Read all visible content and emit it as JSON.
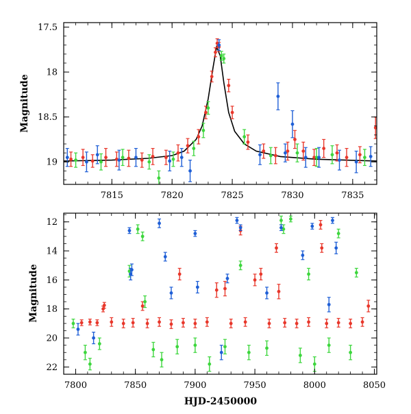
{
  "chart_data": [
    {
      "type": "scatter",
      "panel": "top",
      "title": "",
      "xlabel": "",
      "ylabel": "Magnitude",
      "xlim": [
        7811,
        7837
      ],
      "ylim": [
        19.25,
        17.45
      ],
      "y_inverted": true,
      "x_ticks": [
        7815,
        7820,
        7825,
        7830,
        7835
      ],
      "y_ticks": [
        17.5,
        18,
        18.5,
        19
      ],
      "y_tick_labels": [
        "17.5",
        "18",
        "18.5",
        "19"
      ],
      "series": [
        {
          "color": "#e8372b",
          "points": [
            {
              "x": 7811.6,
              "y": 18.97,
              "e": 0.08
            },
            {
              "x": 7812.6,
              "y": 18.95,
              "e": 0.09
            },
            {
              "x": 7813.4,
              "y": 18.99,
              "e": 0.07
            },
            {
              "x": 7814.5,
              "y": 18.95,
              "e": 0.1
            },
            {
              "x": 7815.4,
              "y": 18.97,
              "e": 0.08
            },
            {
              "x": 7816.4,
              "y": 18.96,
              "e": 0.09
            },
            {
              "x": 7817.5,
              "y": 18.98,
              "e": 0.08
            },
            {
              "x": 7818.4,
              "y": 18.94,
              "e": 0.09
            },
            {
              "x": 7819.5,
              "y": 18.95,
              "e": 0.08
            },
            {
              "x": 7820.5,
              "y": 18.9,
              "e": 0.09
            },
            {
              "x": 7821.3,
              "y": 18.82,
              "e": 0.08
            },
            {
              "x": 7822.2,
              "y": 18.72,
              "e": 0.08
            },
            {
              "x": 7822.8,
              "y": 18.45,
              "e": 0.07
            },
            {
              "x": 7823.3,
              "y": 18.05,
              "e": 0.06
            },
            {
              "x": 7823.6,
              "y": 17.78,
              "e": 0.05
            },
            {
              "x": 7823.75,
              "y": 17.68,
              "e": 0.05
            },
            {
              "x": 7823.9,
              "y": 17.72,
              "e": 0.05
            },
            {
              "x": 7824.7,
              "y": 18.15,
              "e": 0.07
            },
            {
              "x": 7825.0,
              "y": 18.45,
              "e": 0.07
            },
            {
              "x": 7826.3,
              "y": 18.78,
              "e": 0.08
            },
            {
              "x": 7827.6,
              "y": 18.88,
              "e": 0.08
            },
            {
              "x": 7828.6,
              "y": 18.93,
              "e": 0.09
            },
            {
              "x": 7829.6,
              "y": 18.88,
              "e": 0.1
            },
            {
              "x": 7830.2,
              "y": 18.75,
              "e": 0.1
            },
            {
              "x": 7830.9,
              "y": 18.88,
              "e": 0.1
            },
            {
              "x": 7831.8,
              "y": 18.95,
              "e": 0.09
            },
            {
              "x": 7832.6,
              "y": 18.85,
              "e": 0.1
            },
            {
              "x": 7833.7,
              "y": 18.9,
              "e": 0.09
            },
            {
              "x": 7834.5,
              "y": 18.95,
              "e": 0.1
            },
            {
              "x": 7835.6,
              "y": 18.92,
              "e": 0.09
            },
            {
              "x": 7836.9,
              "y": 18.62,
              "e": 0.12
            }
          ]
        },
        {
          "color": "#3dd63d",
          "points": [
            {
              "x": 7812.0,
              "y": 18.98,
              "e": 0.08
            },
            {
              "x": 7814.1,
              "y": 19.0,
              "e": 0.09
            },
            {
              "x": 7815.9,
              "y": 18.95,
              "e": 0.09
            },
            {
              "x": 7818.1,
              "y": 19.0,
              "e": 0.08
            },
            {
              "x": 7818.9,
              "y": 19.18,
              "e": 0.08
            },
            {
              "x": 7820.1,
              "y": 18.97,
              "e": 0.08
            },
            {
              "x": 7821.8,
              "y": 18.85,
              "e": 0.08
            },
            {
              "x": 7822.6,
              "y": 18.65,
              "e": 0.08
            },
            {
              "x": 7823.0,
              "y": 18.4,
              "e": 0.07
            },
            {
              "x": 7824.1,
              "y": 17.82,
              "e": 0.05
            },
            {
              "x": 7824.3,
              "y": 17.85,
              "e": 0.05
            },
            {
              "x": 7826.0,
              "y": 18.72,
              "e": 0.08
            },
            {
              "x": 7828.2,
              "y": 18.93,
              "e": 0.09
            },
            {
              "x": 7830.4,
              "y": 18.9,
              "e": 0.1
            },
            {
              "x": 7832.0,
              "y": 18.95,
              "e": 0.1
            },
            {
              "x": 7833.3,
              "y": 18.92,
              "e": 0.1
            },
            {
              "x": 7836.0,
              "y": 18.95,
              "e": 0.09
            }
          ]
        },
        {
          "color": "#1f5fd6",
          "points": [
            {
              "x": 7811.3,
              "y": 18.95,
              "e": 0.1
            },
            {
              "x": 7812.9,
              "y": 19.0,
              "e": 0.11
            },
            {
              "x": 7813.8,
              "y": 18.92,
              "e": 0.1
            },
            {
              "x": 7815.6,
              "y": 18.98,
              "e": 0.11
            },
            {
              "x": 7817.0,
              "y": 18.95,
              "e": 0.1
            },
            {
              "x": 7819.8,
              "y": 18.99,
              "e": 0.11
            },
            {
              "x": 7820.8,
              "y": 18.95,
              "e": 0.1
            },
            {
              "x": 7821.5,
              "y": 19.1,
              "e": 0.12
            },
            {
              "x": 7823.9,
              "y": 17.7,
              "e": 0.06
            },
            {
              "x": 7827.3,
              "y": 18.92,
              "e": 0.11
            },
            {
              "x": 7828.8,
              "y": 18.27,
              "e": 0.15
            },
            {
              "x": 7829.4,
              "y": 18.9,
              "e": 0.1
            },
            {
              "x": 7830.0,
              "y": 18.58,
              "e": 0.15
            },
            {
              "x": 7831.1,
              "y": 18.95,
              "e": 0.11
            },
            {
              "x": 7832.2,
              "y": 18.95,
              "e": 0.11
            },
            {
              "x": 7833.9,
              "y": 18.98,
              "e": 0.11
            },
            {
              "x": 7835.3,
              "y": 19.0,
              "e": 0.12
            },
            {
              "x": 7836.5,
              "y": 18.94,
              "e": 0.11
            }
          ]
        }
      ],
      "model_curve": {
        "color": "#000000",
        "x": [
          7811,
          7815,
          7818,
          7820,
          7821,
          7822,
          7822.5,
          7823,
          7823.4,
          7823.7,
          7824,
          7824.3,
          7824.7,
          7825.2,
          7826,
          7827,
          7829,
          7832,
          7837
        ],
        "y": [
          18.99,
          18.98,
          18.96,
          18.93,
          18.88,
          18.75,
          18.6,
          18.3,
          17.95,
          17.72,
          17.82,
          18.12,
          18.45,
          18.66,
          18.8,
          18.88,
          18.94,
          18.97,
          18.99
        ]
      }
    },
    {
      "type": "scatter",
      "panel": "bottom",
      "title": "",
      "xlabel": "HJD-2450000",
      "ylabel": "Magnitude",
      "xlim": [
        7790,
        8052
      ],
      "ylim": [
        22.5,
        11.4
      ],
      "y_inverted": true,
      "x_ticks": [
        7800,
        7850,
        7900,
        7950,
        8000,
        8050
      ],
      "x_tick_labels": [
        "7800",
        "7850",
        "7900",
        "7950",
        "8000",
        "8050"
      ],
      "y_ticks": [
        12,
        14,
        16,
        18,
        20,
        22
      ],
      "y_tick_labels": [
        "12",
        "14",
        "16",
        "18",
        "20",
        "22"
      ],
      "series": [
        {
          "color": "#e8372b",
          "points": [
            {
              "x": 7805,
              "y": 18.95,
              "e": 0.2
            },
            {
              "x": 7812,
              "y": 18.9,
              "e": 0.2
            },
            {
              "x": 7818,
              "y": 18.95,
              "e": 0.2
            },
            {
              "x": 7823,
              "y": 18.0,
              "e": 0.2
            },
            {
              "x": 7824,
              "y": 17.75,
              "e": 0.2
            },
            {
              "x": 7830,
              "y": 18.9,
              "e": 0.3
            },
            {
              "x": 7840,
              "y": 19.0,
              "e": 0.3
            },
            {
              "x": 7848,
              "y": 18.95,
              "e": 0.3
            },
            {
              "x": 7856,
              "y": 17.8,
              "e": 0.3
            },
            {
              "x": 7860,
              "y": 19.0,
              "e": 0.3
            },
            {
              "x": 7870,
              "y": 18.9,
              "e": 0.3
            },
            {
              "x": 7880,
              "y": 19.05,
              "e": 0.3
            },
            {
              "x": 7887,
              "y": 15.6,
              "e": 0.4
            },
            {
              "x": 7890,
              "y": 18.95,
              "e": 0.3
            },
            {
              "x": 7900,
              "y": 19.0,
              "e": 0.3
            },
            {
              "x": 7910,
              "y": 18.9,
              "e": 0.3
            },
            {
              "x": 7918,
              "y": 16.7,
              "e": 0.5
            },
            {
              "x": 7925,
              "y": 16.6,
              "e": 0.5
            },
            {
              "x": 7930,
              "y": 19.0,
              "e": 0.3
            },
            {
              "x": 7938,
              "y": 12.6,
              "e": 0.3
            },
            {
              "x": 7942,
              "y": 18.9,
              "e": 0.3
            },
            {
              "x": 7950,
              "y": 16.0,
              "e": 0.4
            },
            {
              "x": 7955,
              "y": 15.6,
              "e": 0.4
            },
            {
              "x": 7962,
              "y": 19.0,
              "e": 0.3
            },
            {
              "x": 7968,
              "y": 13.8,
              "e": 0.3
            },
            {
              "x": 7970,
              "y": 16.8,
              "e": 0.5
            },
            {
              "x": 7975,
              "y": 18.95,
              "e": 0.3
            },
            {
              "x": 7985,
              "y": 19.0,
              "e": 0.3
            },
            {
              "x": 7995,
              "y": 18.9,
              "e": 0.3
            },
            {
              "x": 8005,
              "y": 12.2,
              "e": 0.3
            },
            {
              "x": 8006,
              "y": 13.8,
              "e": 0.3
            },
            {
              "x": 8010,
              "y": 19.0,
              "e": 0.3
            },
            {
              "x": 8020,
              "y": 18.95,
              "e": 0.3
            },
            {
              "x": 8030,
              "y": 19.0,
              "e": 0.3
            },
            {
              "x": 8040,
              "y": 18.9,
              "e": 0.3
            },
            {
              "x": 8045,
              "y": 17.8,
              "e": 0.4
            }
          ]
        },
        {
          "color": "#3dd63d",
          "points": [
            {
              "x": 7798,
              "y": 19.0,
              "e": 0.3
            },
            {
              "x": 7808,
              "y": 21.0,
              "e": 0.5
            },
            {
              "x": 7812,
              "y": 21.8,
              "e": 0.4
            },
            {
              "x": 7820,
              "y": 20.4,
              "e": 0.4
            },
            {
              "x": 7845,
              "y": 15.4,
              "e": 0.4
            },
            {
              "x": 7852,
              "y": 12.5,
              "e": 0.3
            },
            {
              "x": 7856,
              "y": 13.0,
              "e": 0.3
            },
            {
              "x": 7858,
              "y": 17.5,
              "e": 0.4
            },
            {
              "x": 7865,
              "y": 20.8,
              "e": 0.5
            },
            {
              "x": 7872,
              "y": 21.5,
              "e": 0.5
            },
            {
              "x": 7885,
              "y": 20.6,
              "e": 0.5
            },
            {
              "x": 7900,
              "y": 20.5,
              "e": 0.5
            },
            {
              "x": 7912,
              "y": 21.8,
              "e": 0.5
            },
            {
              "x": 7925,
              "y": 20.6,
              "e": 0.5
            },
            {
              "x": 7938,
              "y": 15.0,
              "e": 0.3
            },
            {
              "x": 7945,
              "y": 21.0,
              "e": 0.5
            },
            {
              "x": 7960,
              "y": 20.7,
              "e": 0.5
            },
            {
              "x": 7972,
              "y": 11.9,
              "e": 0.3
            },
            {
              "x": 7974,
              "y": 12.5,
              "e": 0.3
            },
            {
              "x": 7980,
              "y": 11.8,
              "e": 0.2
            },
            {
              "x": 7988,
              "y": 21.2,
              "e": 0.5
            },
            {
              "x": 7995,
              "y": 15.6,
              "e": 0.4
            },
            {
              "x": 8000,
              "y": 21.8,
              "e": 0.5
            },
            {
              "x": 8012,
              "y": 20.5,
              "e": 0.5
            },
            {
              "x": 8020,
              "y": 12.8,
              "e": 0.3
            },
            {
              "x": 8030,
              "y": 21.0,
              "e": 0.5
            },
            {
              "x": 8035,
              "y": 15.5,
              "e": 0.3
            }
          ]
        },
        {
          "color": "#1f5fd6",
          "points": [
            {
              "x": 7802,
              "y": 19.4,
              "e": 0.4
            },
            {
              "x": 7815,
              "y": 20.0,
              "e": 0.4
            },
            {
              "x": 7845,
              "y": 12.6,
              "e": 0.2
            },
            {
              "x": 7846,
              "y": 15.6,
              "e": 0.4
            },
            {
              "x": 7847,
              "y": 15.3,
              "e": 0.4
            },
            {
              "x": 7870,
              "y": 12.1,
              "e": 0.3
            },
            {
              "x": 7875,
              "y": 14.4,
              "e": 0.3
            },
            {
              "x": 7880,
              "y": 16.9,
              "e": 0.4
            },
            {
              "x": 7900,
              "y": 12.8,
              "e": 0.2
            },
            {
              "x": 7902,
              "y": 16.5,
              "e": 0.4
            },
            {
              "x": 7922,
              "y": 21.0,
              "e": 0.5
            },
            {
              "x": 7927,
              "y": 15.9,
              "e": 0.3
            },
            {
              "x": 7935,
              "y": 11.9,
              "e": 0.2
            },
            {
              "x": 7938,
              "y": 12.4,
              "e": 0.2
            },
            {
              "x": 7960,
              "y": 16.9,
              "e": 0.4
            },
            {
              "x": 7972,
              "y": 12.4,
              "e": 0.2
            },
            {
              "x": 7990,
              "y": 14.3,
              "e": 0.3
            },
            {
              "x": 7998,
              "y": 12.3,
              "e": 0.2
            },
            {
              "x": 8015,
              "y": 11.9,
              "e": 0.2
            },
            {
              "x": 8018,
              "y": 13.8,
              "e": 0.4
            },
            {
              "x": 8012,
              "y": 17.7,
              "e": 0.5
            }
          ]
        }
      ]
    }
  ]
}
